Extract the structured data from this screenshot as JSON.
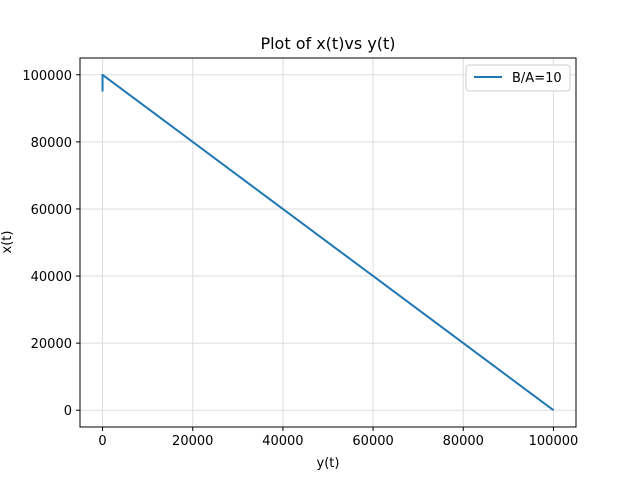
{
  "chart_data": {
    "type": "line",
    "title": "Plot of x(t)vs y(t)",
    "xlabel": "y(t)",
    "ylabel": "x(t)",
    "xlim": [
      -5000,
      105000
    ],
    "ylim": [
      -5000,
      105000
    ],
    "xticks": [
      0,
      20000,
      40000,
      60000,
      80000,
      100000
    ],
    "yticks": [
      0,
      20000,
      40000,
      60000,
      80000,
      100000
    ],
    "xtick_labels": [
      "0",
      "20000",
      "40000",
      "60000",
      "80000",
      "100000"
    ],
    "ytick_labels": [
      "0",
      "20000",
      "40000",
      "60000",
      "80000",
      "100000"
    ],
    "grid": true,
    "legend_position": "top-right",
    "series": [
      {
        "name": "B/A=10",
        "color": "#1f77b4",
        "points": [
          [
            0,
            95000
          ],
          [
            0,
            100000
          ],
          [
            100000,
            0
          ]
        ]
      }
    ]
  },
  "colors": {
    "series": "#1f77b4",
    "grid": "#dddddd",
    "axes": "#000000",
    "background": "#ffffff"
  }
}
